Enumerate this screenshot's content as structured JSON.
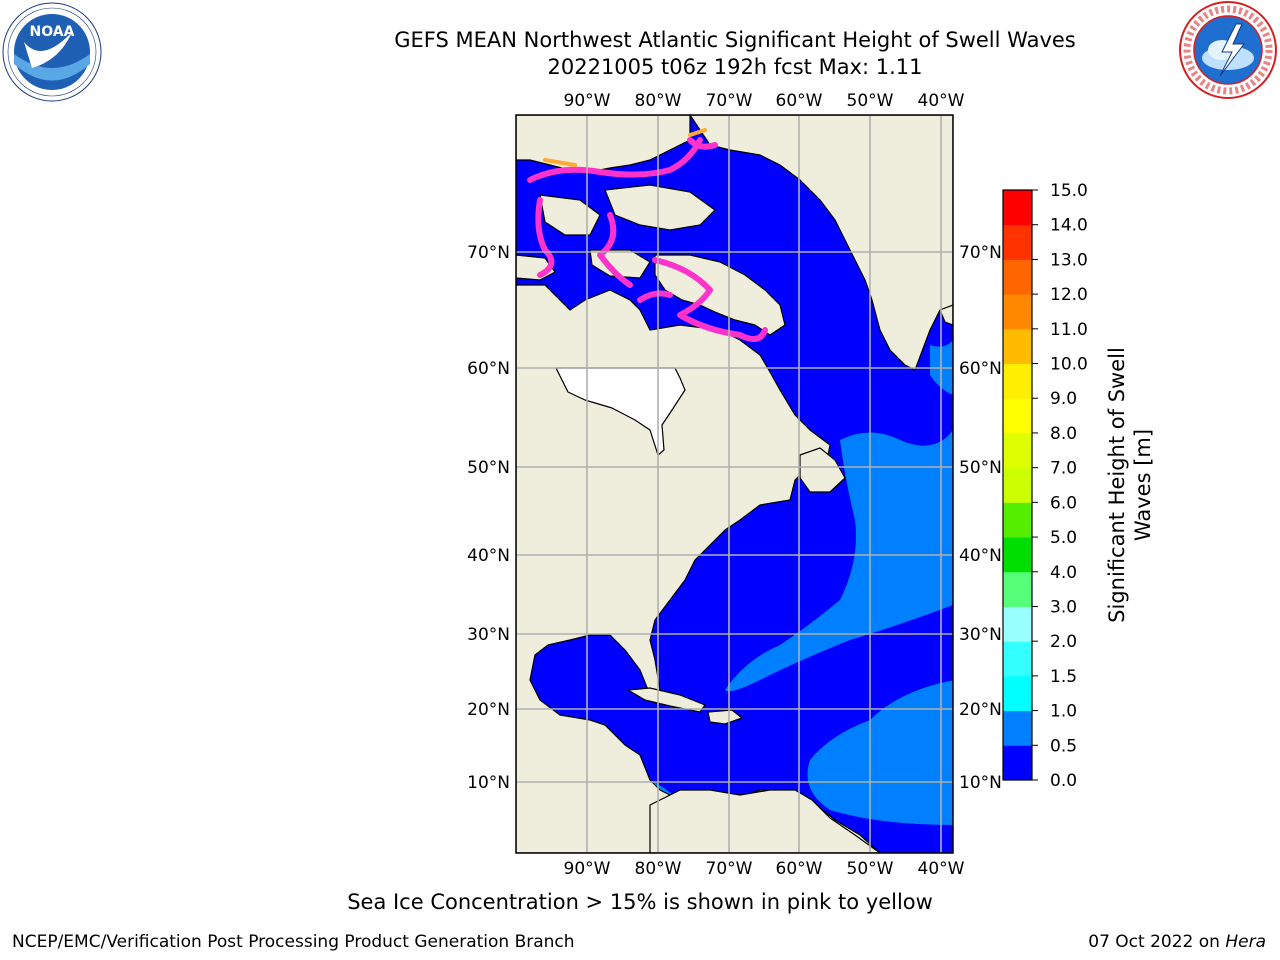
{
  "header": {
    "title_line1": "GEFS MEAN Northwest Atlantic Significant Height of Swell Waves",
    "title_line2": "20221005 t06z 192h fcst   Max: 1.11"
  },
  "logos": {
    "left": "NOAA",
    "left_ring_text": "NATIONAL OCEANIC AND ATMOSPHERIC ADMINISTRATION · U.S. DEPARTMENT OF COMMERCE",
    "right_ring_text": "NATIONAL WEATHER SERVICE"
  },
  "map": {
    "lon_labels": [
      "90°W",
      "80°W",
      "70°W",
      "60°W",
      "50°W",
      "40°W"
    ],
    "lat_labels": [
      "70°N",
      "60°N",
      "50°N",
      "40°N",
      "30°N",
      "20°N",
      "10°N"
    ],
    "colors": {
      "land": "#efeddc",
      "swell_0_0_5": "#0000ff",
      "swell_0_5_1_0": "#0080ff",
      "sea_ice": "#ff33cc",
      "sea_ice_high": "#ffaa33",
      "grid": "#b0b0b0",
      "no_data": "#ffffff"
    }
  },
  "colorbar": {
    "label_line1": "Significant Height of Swell",
    "label_line2": "Waves [m]",
    "ticks": [
      "0.0",
      "0.5",
      "1.0",
      "1.5",
      "2.0",
      "3.0",
      "4.0",
      "5.0",
      "6.0",
      "7.0",
      "8.0",
      "9.0",
      "10.0",
      "11.0",
      "12.0",
      "13.0",
      "14.0",
      "15.0"
    ],
    "colors": [
      "#0000ff",
      "#0080ff",
      "#00ffff",
      "#33ffff",
      "#99ffff",
      "#55ff77",
      "#00dd00",
      "#55ee00",
      "#ccff00",
      "#ddff00",
      "#ffff00",
      "#ffee00",
      "#ffbb00",
      "#ff8800",
      "#ff6600",
      "#ff3300",
      "#ff0000"
    ]
  },
  "caption": "Sea Ice Concentration > 15% is shown in pink to yellow",
  "footer": {
    "left": "NCEP/EMC/Verification Post Processing Product Generation Branch",
    "date": "07 Oct 2022 on ",
    "host": "Hera"
  }
}
